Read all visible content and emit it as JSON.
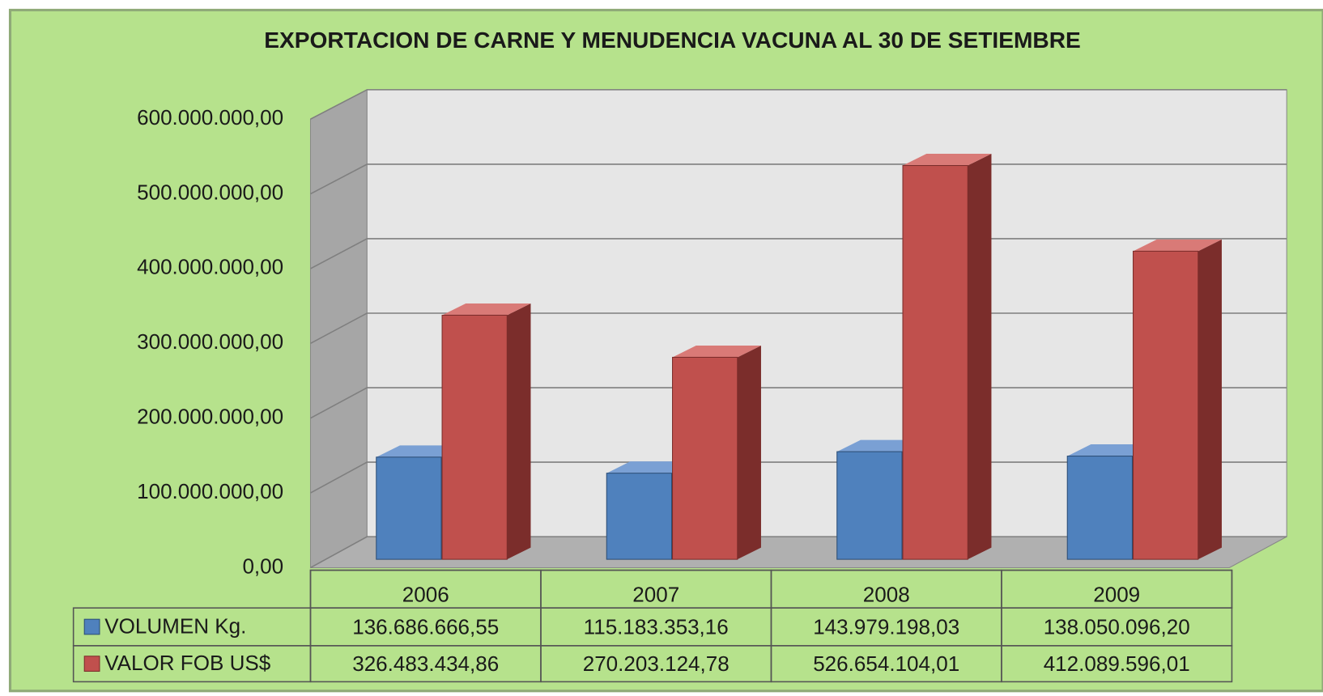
{
  "chart_data": {
    "type": "bar3d",
    "title": "EXPORTACION DE CARNE Y MENUDENCIA VACUNA AL 30 DE SETIEMBRE",
    "categories": [
      "2006",
      "2007",
      "2008",
      "2009"
    ],
    "series": [
      {
        "name": "VOLUMEN Kg.",
        "color": "#4f81bd",
        "values": [
          136686666.55,
          115183353.16,
          143979198.03,
          138050096.2
        ],
        "value_labels": [
          "136.686.666,55",
          "115.183.353,16",
          "143.979.198,03",
          "138.050.096,20"
        ]
      },
      {
        "name": "VALOR FOB US$",
        "color": "#c0504d",
        "values": [
          326483434.86,
          270203124.78,
          526654104.01,
          412089596.01
        ],
        "value_labels": [
          "326.483.434,86",
          "270.203.124,78",
          "526.654.104,01",
          "412.089.596,01"
        ]
      }
    ],
    "ylim": [
      0,
      600000000
    ],
    "yticks": [
      {
        "value": 0,
        "label": "0,00"
      },
      {
        "value": 100000000,
        "label": "100.000.000,00"
      },
      {
        "value": 200000000,
        "label": "200.000.000,00"
      },
      {
        "value": 300000000,
        "label": "300.000.000,00"
      },
      {
        "value": 400000000,
        "label": "400.000.000,00"
      },
      {
        "value": 500000000,
        "label": "500.000.000,00"
      },
      {
        "value": 600000000,
        "label": "600.000.000,00"
      }
    ],
    "grid": true
  }
}
